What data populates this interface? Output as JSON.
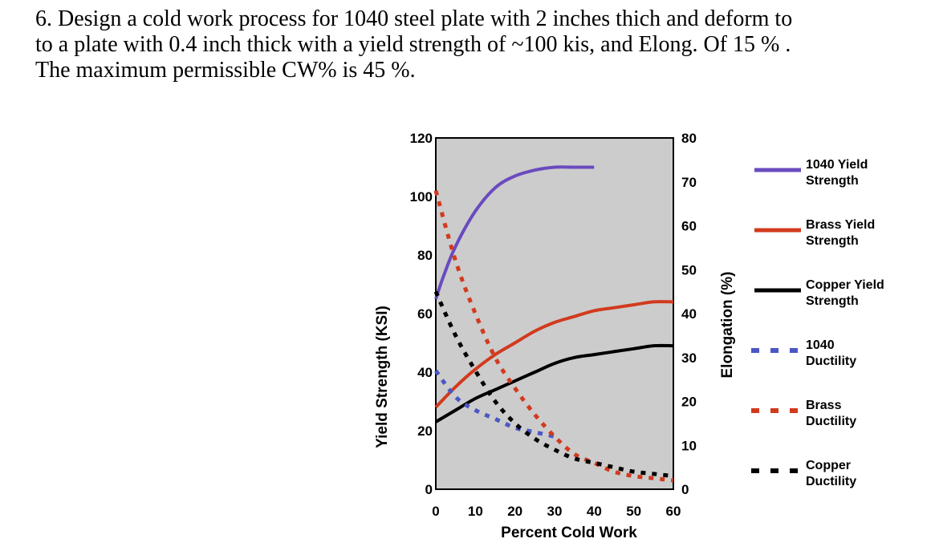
{
  "problem": {
    "lines": [
      "6. Design a cold work process for 1040 steel plate with 2 inches thich and deform to",
      "to a plate with 0.4 inch thick with a yield strength of ~100 kis, and Elong. Of 15 % .",
      "The maximum permissible CW% is 45 %."
    ]
  },
  "chart_data": {
    "type": "line",
    "title": "",
    "xlabel": "Percent Cold Work",
    "ylabel": "Yield Strength (KSI)",
    "y2label": "Elongation (%)",
    "xlim": [
      0,
      60
    ],
    "ylim": [
      0,
      120
    ],
    "y2lim": [
      0,
      80
    ],
    "x_ticks": [
      0,
      10,
      20,
      30,
      40,
      50,
      60
    ],
    "y_ticks": [
      0,
      20,
      40,
      60,
      80,
      100,
      120
    ],
    "y2_ticks": [
      0,
      10,
      20,
      30,
      40,
      50,
      60,
      70,
      80
    ],
    "plot_background": "#cccccc",
    "legend_position": "right",
    "series": [
      {
        "name": "1040 Yield Strength",
        "axis": "left",
        "style": "solid",
        "color": "#6a4bbf",
        "x": [
          0,
          2,
          5,
          10,
          15,
          20,
          25,
          30,
          35,
          40
        ],
        "y": [
          65,
          73,
          83,
          95,
          103,
          107,
          109,
          110,
          110,
          110
        ]
      },
      {
        "name": "Brass Yield Strength",
        "axis": "left",
        "style": "solid",
        "color": "#d23a1e",
        "x": [
          0,
          5,
          10,
          15,
          20,
          25,
          30,
          35,
          40,
          45,
          50,
          55,
          60
        ],
        "y": [
          28,
          35,
          41,
          46,
          50,
          54,
          57,
          59,
          61,
          62,
          63,
          64,
          64
        ]
      },
      {
        "name": "Copper Yield Strength",
        "axis": "left",
        "style": "solid",
        "color": "#000000",
        "x": [
          0,
          5,
          10,
          15,
          20,
          25,
          30,
          35,
          40,
          45,
          50,
          55,
          60
        ],
        "y": [
          23,
          27,
          31,
          34,
          37,
          40,
          43,
          45,
          46,
          47,
          48,
          49,
          49
        ]
      },
      {
        "name": "1040 Ductility",
        "axis": "right",
        "style": "dashed",
        "color": "#4a57c4",
        "x": [
          0,
          5,
          10,
          15,
          20,
          25,
          30
        ],
        "y": [
          27,
          21,
          18,
          16,
          14,
          13,
          12
        ]
      },
      {
        "name": "Brass Ductility",
        "axis": "right",
        "style": "dashed",
        "color": "#d23a1e",
        "x": [
          0,
          5,
          10,
          15,
          20,
          25,
          30,
          35,
          40,
          45,
          50,
          55,
          60
        ],
        "y": [
          68,
          52,
          40,
          30,
          23,
          17,
          12,
          8,
          6,
          4,
          3,
          2.5,
          2
        ]
      },
      {
        "name": "Copper Ductility",
        "axis": "right",
        "style": "dashed",
        "color": "#000000",
        "x": [
          0,
          5,
          10,
          15,
          20,
          25,
          30,
          35,
          40,
          45,
          50,
          55,
          60
        ],
        "y": [
          45,
          35,
          27,
          20,
          15,
          11.5,
          9,
          7,
          6,
          5,
          4,
          3.5,
          3
        ]
      }
    ]
  }
}
